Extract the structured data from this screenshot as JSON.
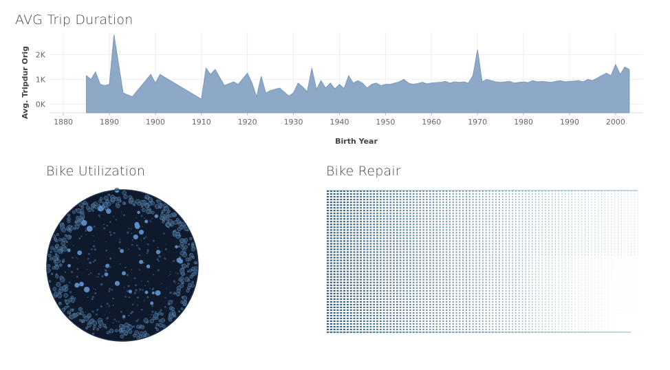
{
  "dashboard": {
    "avg_title": "AVG Trip Duration",
    "util_title": "Bike Utilization",
    "repair_title": "Bike Repair"
  },
  "colors": {
    "area_fill": "#8ea9c8",
    "area_stroke": "#7b98bb",
    "grid": "#eeeeee",
    "axis_text": "#666666",
    "bubble_dark": "#0e1a2b",
    "bubble_light": "#5d8fc9",
    "repair_dark": "#2b5476",
    "repair_light": "#6fb4b8"
  },
  "chart_data": [
    {
      "type": "area",
      "title": "AVG Trip Duration",
      "xlabel": "Birth Year",
      "ylabel": "Avg. Tripdur Orig",
      "xlim": [
        1877,
        2006
      ],
      "ylim": [
        -350,
        2900
      ],
      "xticks": [
        1880,
        1890,
        1900,
        1910,
        1920,
        1930,
        1940,
        1950,
        1960,
        1970,
        1980,
        1990,
        2000
      ],
      "xtick_labels": [
        "1880",
        "1890",
        "1900",
        "1910",
        "1920",
        "1930",
        "1940",
        "1950",
        "1960",
        "1970",
        "1980",
        "1990",
        "2000"
      ],
      "yticks": [
        0,
        1000,
        2000
      ],
      "ytick_labels": [
        "0K",
        "1K",
        "2K"
      ],
      "grid": true,
      "x": [
        1885,
        1886,
        1887,
        1888,
        1889,
        1890,
        1891,
        1893,
        1895,
        1899,
        1900,
        1901,
        1910,
        1911,
        1912,
        1913,
        1915,
        1917,
        1918,
        1920,
        1921,
        1922,
        1923,
        1924,
        1925,
        1926,
        1927,
        1929,
        1930,
        1931,
        1932,
        1933,
        1934,
        1935,
        1936,
        1937,
        1938,
        1939,
        1940,
        1941,
        1942,
        1943,
        1944,
        1945,
        1946,
        1947,
        1948,
        1949,
        1950,
        1951,
        1952,
        1953,
        1954,
        1955,
        1956,
        1957,
        1958,
        1959,
        1960,
        1961,
        1962,
        1963,
        1964,
        1965,
        1966,
        1967,
        1968,
        1969,
        1970,
        1971,
        1972,
        1973,
        1974,
        1975,
        1976,
        1977,
        1978,
        1979,
        1980,
        1981,
        1982,
        1983,
        1984,
        1985,
        1986,
        1987,
        1988,
        1989,
        1990,
        1991,
        1992,
        1993,
        1994,
        1995,
        1996,
        1997,
        1998,
        1999,
        2000,
        2001,
        2002,
        2003
      ],
      "values": [
        1150,
        1000,
        1300,
        800,
        750,
        800,
        2800,
        450,
        300,
        1200,
        850,
        1200,
        200,
        1450,
        1200,
        1400,
        750,
        900,
        800,
        1250,
        850,
        300,
        1120,
        450,
        550,
        600,
        650,
        330,
        450,
        850,
        700,
        500,
        1450,
        600,
        950,
        650,
        850,
        620,
        800,
        630,
        1150,
        850,
        950,
        850,
        650,
        800,
        850,
        750,
        800,
        800,
        850,
        900,
        1000,
        850,
        800,
        830,
        880,
        820,
        850,
        870,
        880,
        920,
        850,
        900,
        880,
        900,
        850,
        1150,
        2200,
        900,
        1000,
        950,
        900,
        880,
        900,
        920,
        850,
        880,
        900,
        870,
        950,
        900,
        920,
        900,
        880,
        920,
        950,
        900,
        920,
        930,
        950,
        900,
        1000,
        950,
        1050,
        1150,
        1250,
        1150,
        1600,
        1200,
        1500,
        1400
      ]
    }
  ]
}
